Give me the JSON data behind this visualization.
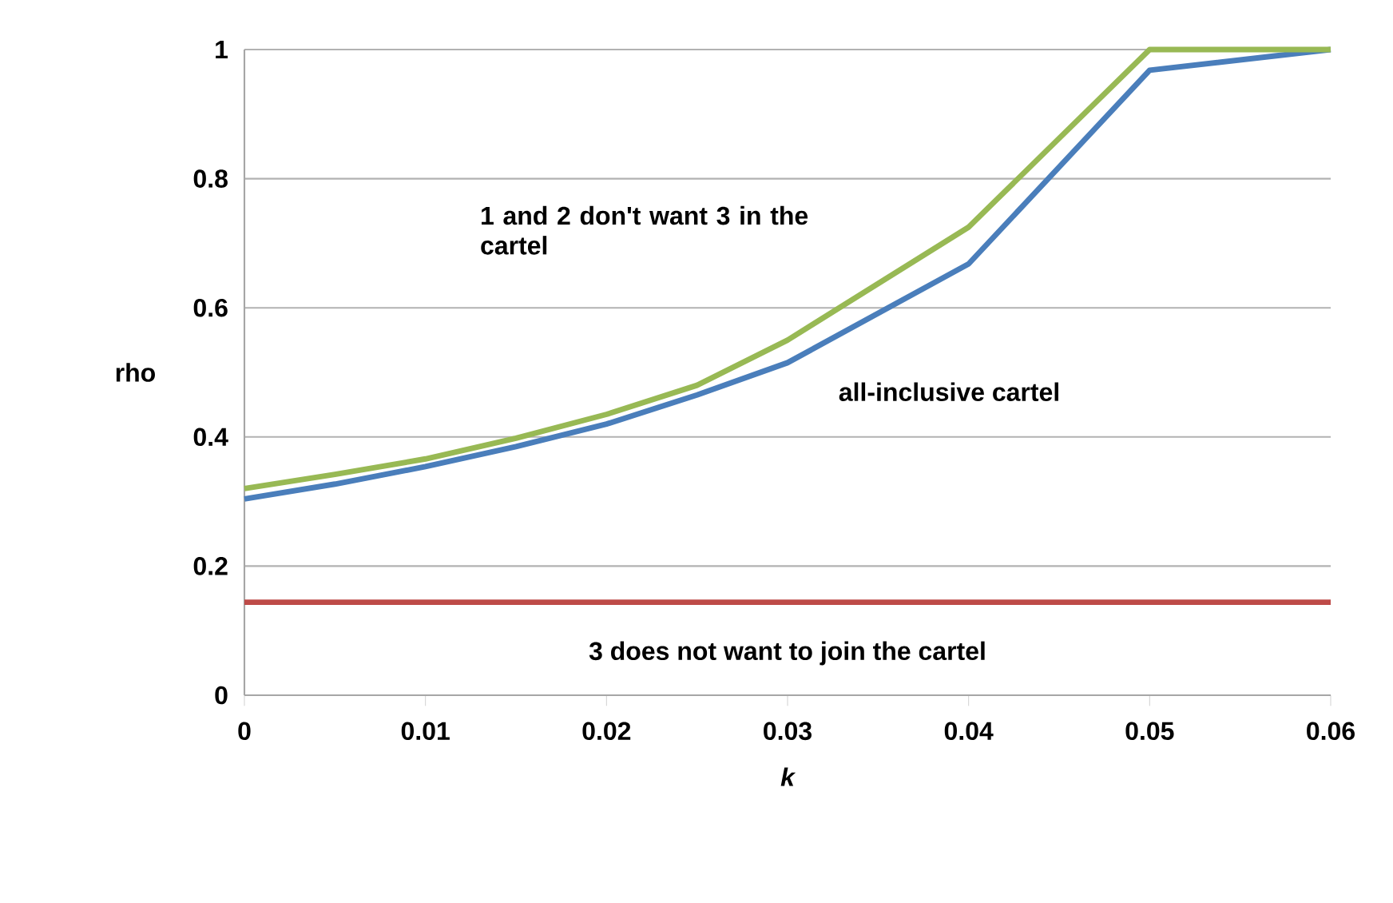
{
  "chart_data": {
    "type": "line",
    "xlabel": "k",
    "ylabel": "rho",
    "x": [
      0,
      0.005,
      0.01,
      0.015,
      0.02,
      0.025,
      0.03,
      0.04,
      0.05,
      0.06
    ],
    "series": [
      {
        "color": "#4a7ebb",
        "values": [
          0.304,
          0.327,
          0.354,
          0.385,
          0.42,
          0.465,
          0.515,
          0.668,
          0.968,
          1.0
        ]
      },
      {
        "color": "#98b954",
        "values": [
          0.32,
          0.342,
          0.366,
          0.398,
          0.435,
          0.48,
          0.55,
          0.725,
          1.0,
          1.0
        ]
      },
      {
        "color": "#be4b48",
        "x": [
          0,
          0.06
        ],
        "values": [
          0.144,
          0.144
        ]
      }
    ],
    "xlim": [
      0,
      0.06
    ],
    "ylim": [
      0,
      1
    ],
    "xticks": [
      0,
      0.01,
      0.02,
      0.03,
      0.04,
      0.05,
      0.06
    ],
    "yticks": [
      0,
      0.2,
      0.4,
      0.6,
      0.8,
      1
    ],
    "grid": "y",
    "legend": false,
    "marker": "none",
    "line_style": "solid",
    "annotations": [
      "1 and 2 don't want 3 in the cartel",
      "all-inclusive cartel",
      "3 does not want to join the cartel"
    ]
  }
}
